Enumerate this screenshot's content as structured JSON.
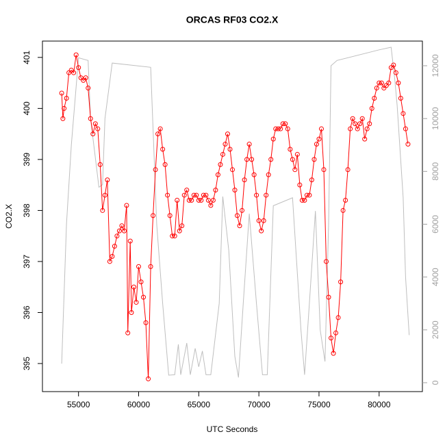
{
  "chart_data": {
    "type": "line",
    "title": "ORCAS RF03 CO2.X",
    "xlabel": "UTC Seconds",
    "ylabel": "CO2.X",
    "xlim": [
      52000,
      83600
    ],
    "ylim": [
      394.45,
      401.32
    ],
    "y2lim": [
      -337,
      12933
    ],
    "xticks": [
      55000,
      60000,
      65000,
      70000,
      75000,
      80000
    ],
    "yticks": [
      395,
      396,
      397,
      398,
      399,
      400,
      401
    ],
    "y2ticks": [
      0,
      2000,
      4000,
      6000,
      8000,
      10000,
      12000
    ],
    "y2tick_color": "#a0a0a0",
    "series": [
      {
        "color": "#bebebe",
        "axis": "y2",
        "markers": false,
        "x": [
          53600,
          54000,
          54400,
          55000,
          55800,
          56000,
          56700,
          57000,
          57200,
          57800,
          61000,
          61500,
          62000,
          62500,
          63000,
          63300,
          63500,
          64000,
          64300,
          64700,
          65000,
          65300,
          65600,
          66000,
          66700,
          67000,
          67500,
          68000,
          68300,
          68700,
          69200,
          69800,
          70300,
          70700,
          71200,
          72800,
          73500,
          73800,
          74200,
          74700,
          75100,
          75500,
          75800,
          76000,
          76500,
          80000,
          81000,
          81300,
          81500,
          82000,
          82200,
          82500
        ],
        "values": [
          720,
          6000,
          9000,
          12300,
          12200,
          10000,
          7400,
          7500,
          10000,
          12100,
          11940,
          6000,
          3000,
          285,
          300,
          1450,
          300,
          1500,
          300,
          1300,
          600,
          1200,
          300,
          300,
          3000,
          7050,
          5000,
          1000,
          200,
          3000,
          6400,
          3000,
          300,
          300,
          6700,
          7000,
          2000,
          300,
          3000,
          6500,
          2000,
          800,
          6000,
          12000,
          12200,
          12600,
          12700,
          11500,
          10500,
          7000,
          4000,
          1800
        ]
      },
      {
        "color": "#ff0000",
        "markers": true,
        "x": [
          53600,
          53700,
          53800,
          54000,
          54200,
          54400,
          54600,
          54800,
          55000,
          55200,
          55400,
          55600,
          55800,
          56000,
          56200,
          56400,
          56600,
          56800,
          57000,
          57200,
          57400,
          57600,
          57800,
          58000,
          58200,
          58400,
          58600,
          58800,
          59000,
          59100,
          59300,
          59400,
          59600,
          59800,
          60000,
          60200,
          60400,
          60600,
          60800,
          61000,
          61200,
          61400,
          61600,
          61800,
          62000,
          62200,
          62400,
          62600,
          62800,
          63000,
          63200,
          63400,
          63600,
          63800,
          64000,
          64200,
          64400,
          64600,
          64800,
          65000,
          65200,
          65400,
          65600,
          65800,
          66000,
          66200,
          66400,
          66600,
          66800,
          67000,
          67200,
          67400,
          67600,
          67800,
          68000,
          68200,
          68400,
          68600,
          68800,
          69000,
          69200,
          69400,
          69600,
          69800,
          70000,
          70200,
          70400,
          70600,
          70800,
          71000,
          71200,
          71400,
          71600,
          71800,
          72000,
          72200,
          72400,
          72600,
          72800,
          73000,
          73200,
          73400,
          73600,
          73800,
          74000,
          74200,
          74400,
          74600,
          74800,
          75000,
          75200,
          75400,
          75600,
          75800,
          76000,
          76200,
          76400,
          76600,
          76800,
          77000,
          77200,
          77400,
          77600,
          77800,
          78000,
          78200,
          78400,
          78600,
          78800,
          79000,
          79200,
          79400,
          79600,
          79800,
          80000,
          80200,
          80400,
          80600,
          80800,
          81000,
          81200,
          81400,
          81600,
          81800,
          82000,
          82200,
          82400
        ],
        "values": [
          400.3,
          399.8,
          400.0,
          400.2,
          400.7,
          400.75,
          400.7,
          401.05,
          400.8,
          400.6,
          400.55,
          400.6,
          400.4,
          399.8,
          399.5,
          399.7,
          399.6,
          398.9,
          398.0,
          398.3,
          398.6,
          397.0,
          397.1,
          397.3,
          397.5,
          397.6,
          397.7,
          397.6,
          398.1,
          395.6,
          397.4,
          396.0,
          396.5,
          396.2,
          396.9,
          396.6,
          396.3,
          395.8,
          394.7,
          396.9,
          397.9,
          398.8,
          399.5,
          399.6,
          399.2,
          398.9,
          398.3,
          397.9,
          397.5,
          397.5,
          398.2,
          397.6,
          397.7,
          398.3,
          398.4,
          398.2,
          398.2,
          398.3,
          398.3,
          398.2,
          398.2,
          398.3,
          398.3,
          398.2,
          398.1,
          398.2,
          398.4,
          398.7,
          398.9,
          399.1,
          399.3,
          399.5,
          399.2,
          398.8,
          398.4,
          397.9,
          397.7,
          398.0,
          398.6,
          399.0,
          399.3,
          399.0,
          398.7,
          398.3,
          397.8,
          397.6,
          397.8,
          398.3,
          398.7,
          399.0,
          399.4,
          399.6,
          399.6,
          399.6,
          399.7,
          399.7,
          399.6,
          399.2,
          399.0,
          398.8,
          399.1,
          398.5,
          398.2,
          398.2,
          398.3,
          398.3,
          398.6,
          399.0,
          399.3,
          399.4,
          399.6,
          398.8,
          397.0,
          396.3,
          395.5,
          395.2,
          395.6,
          395.9,
          396.6,
          398.0,
          398.2,
          398.8,
          399.6,
          399.8,
          399.7,
          399.6,
          399.7,
          399.8,
          399.4,
          399.6,
          399.7,
          400.0,
          400.2,
          400.4,
          400.5,
          400.5,
          400.4,
          400.45,
          400.5,
          400.8,
          400.85,
          400.7,
          400.5,
          400.2,
          399.9,
          399.6,
          399.3
        ]
      }
    ]
  }
}
